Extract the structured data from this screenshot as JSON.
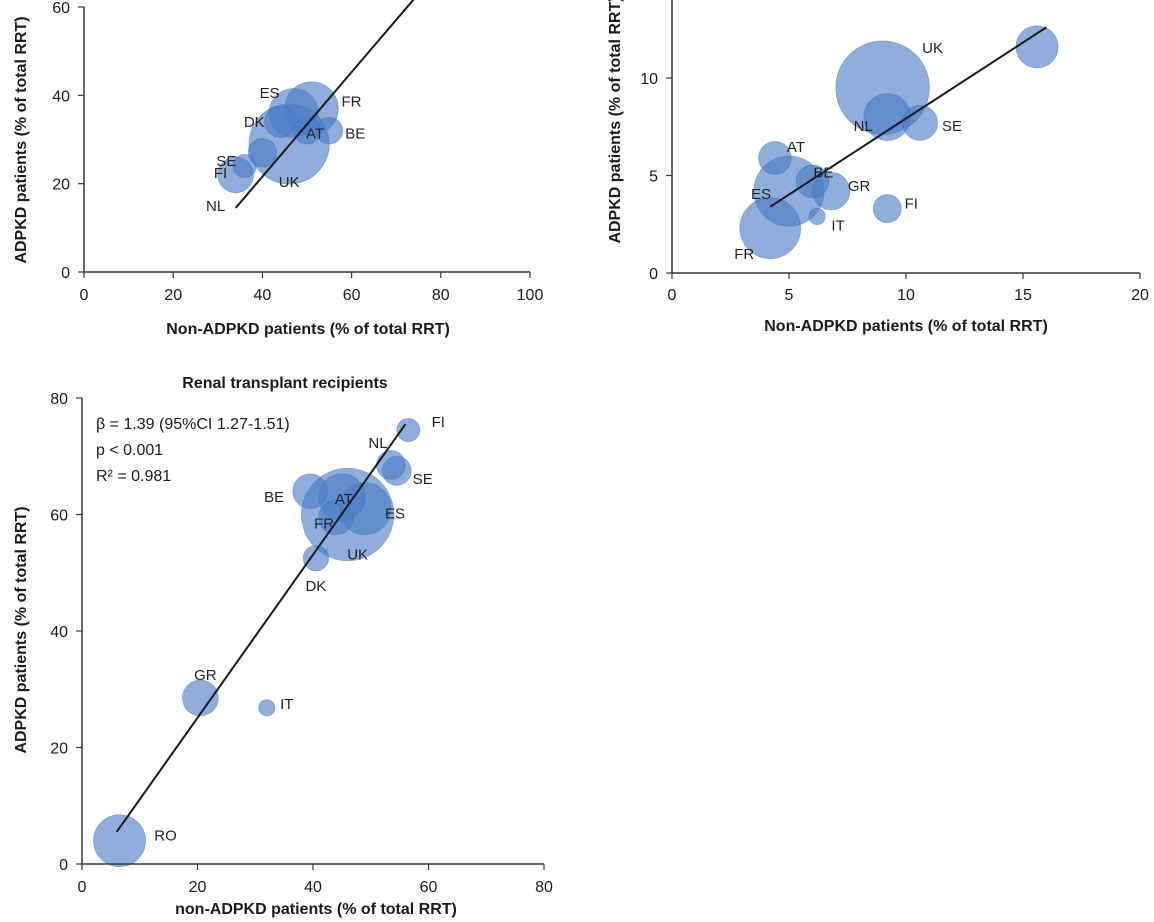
{
  "bubble_color": "#4a7cc7",
  "line_color": "#1a1a1a",
  "chart_data": [
    {
      "type": "scatter",
      "title": "",
      "xlabel": "Non-ADPKD patients (% of total RRT)",
      "ylabel": "ADPKD patients (% of total RRT)",
      "xlim": [
        0,
        100
      ],
      "ylim": [
        0,
        60
      ],
      "xticks": [
        "0",
        "20",
        "40",
        "60",
        "80",
        "100"
      ],
      "yticks": [
        "0",
        "20",
        "40",
        "60"
      ],
      "fit_line": [
        [
          34,
          14.5
        ],
        [
          75,
          63
        ]
      ],
      "points": [
        {
          "label": "NL",
          "x": 34,
          "y": 22,
          "r": 4
        },
        {
          "label": "FI",
          "x": 36,
          "y": 24,
          "r": 2.6
        },
        {
          "label": "SE",
          "x": 40,
          "y": 27,
          "r": 3.2
        },
        {
          "label": "UK",
          "x": 46,
          "y": 29,
          "r": 9
        },
        {
          "label": "DK",
          "x": 44,
          "y": 34,
          "r": 3.5
        },
        {
          "label": "ES",
          "x": 47,
          "y": 36,
          "r": 5.5
        },
        {
          "label": "FR",
          "x": 51,
          "y": 37,
          "r": 6
        },
        {
          "label": "AT",
          "x": 50,
          "y": 32,
          "r": 3
        },
        {
          "label": "BE",
          "x": 55,
          "y": 32,
          "r": 3
        }
      ]
    },
    {
      "type": "scatter",
      "title": "",
      "xlabel": "Non-ADPKD patients (% of total RRT)",
      "ylabel": "ADPKD patients (% of total RRT)",
      "xlim": [
        0,
        20
      ],
      "ylim": [
        0,
        14
      ],
      "xticks": [
        "0",
        "5",
        "10",
        "15",
        "20"
      ],
      "yticks": [
        "0",
        "5",
        "10"
      ],
      "fit_line": [
        [
          4.2,
          3.4
        ],
        [
          16,
          12.6
        ]
      ],
      "points": [
        {
          "label": "UK",
          "x": 9,
          "y": 9.5,
          "r": 2
        },
        {
          "label": "",
          "x": 15.6,
          "y": 11.6,
          "r": 0.9
        },
        {
          "label": "NL",
          "x": 9.2,
          "y": 8.0,
          "r": 1
        },
        {
          "label": "SE",
          "x": 10.6,
          "y": 7.7,
          "r": 0.75
        },
        {
          "label": "AT",
          "x": 4.4,
          "y": 5.9,
          "r": 0.7
        },
        {
          "label": "BE",
          "x": 6.0,
          "y": 4.7,
          "r": 0.7
        },
        {
          "label": "GR",
          "x": 6.8,
          "y": 4.2,
          "r": 0.8
        },
        {
          "label": "ES",
          "x": 5.0,
          "y": 4.2,
          "r": 1.5
        },
        {
          "label": "FI",
          "x": 9.2,
          "y": 3.3,
          "r": 0.6
        },
        {
          "label": "IT",
          "x": 6.2,
          "y": 2.9,
          "r": 0.35
        },
        {
          "label": "FR",
          "x": 4.2,
          "y": 2.3,
          "r": 1.3
        }
      ]
    },
    {
      "type": "scatter",
      "title": "Renal transplant recipients",
      "xlabel": "non-ADPKD patients (% of total RRT)",
      "ylabel": "ADPKD patients (% of total RRT)",
      "xlim": [
        0,
        80
      ],
      "ylim": [
        0,
        80
      ],
      "xticks": [
        "0",
        "20",
        "40",
        "60",
        "80"
      ],
      "yticks": [
        "0",
        "20",
        "40",
        "60",
        "80"
      ],
      "annotations": [
        "β  = 1.39 (95%CI 1.27-1.51)",
        "p  < 0.001",
        "R² = 0.981"
      ],
      "fit_line": [
        [
          6,
          5.5
        ],
        [
          56,
          75.5
        ]
      ],
      "points": [
        {
          "label": "FI",
          "x": 56.5,
          "y": 74.5,
          "r": 2
        },
        {
          "label": "NL",
          "x": 53.5,
          "y": 68.5,
          "r": 2.5
        },
        {
          "label": "SE",
          "x": 54.5,
          "y": 67.5,
          "r": 2.5
        },
        {
          "label": "BE",
          "x": 39.5,
          "y": 64,
          "r": 3
        },
        {
          "label": "AT",
          "x": 45,
          "y": 63,
          "r": 4
        },
        {
          "label": "ES",
          "x": 49,
          "y": 61,
          "r": 4.5
        },
        {
          "label": "UK",
          "x": 46,
          "y": 60,
          "r": 8
        },
        {
          "label": "FR",
          "x": 44,
          "y": 59.5,
          "r": 3
        },
        {
          "label": "DK",
          "x": 40.5,
          "y": 52.5,
          "r": 2.2
        },
        {
          "label": "GR",
          "x": 20.5,
          "y": 28.5,
          "r": 3.1
        },
        {
          "label": "IT",
          "x": 32,
          "y": 26.8,
          "r": 1.4
        },
        {
          "label": "RO",
          "x": 6.5,
          "y": 4,
          "r": 4.5
        }
      ]
    }
  ]
}
